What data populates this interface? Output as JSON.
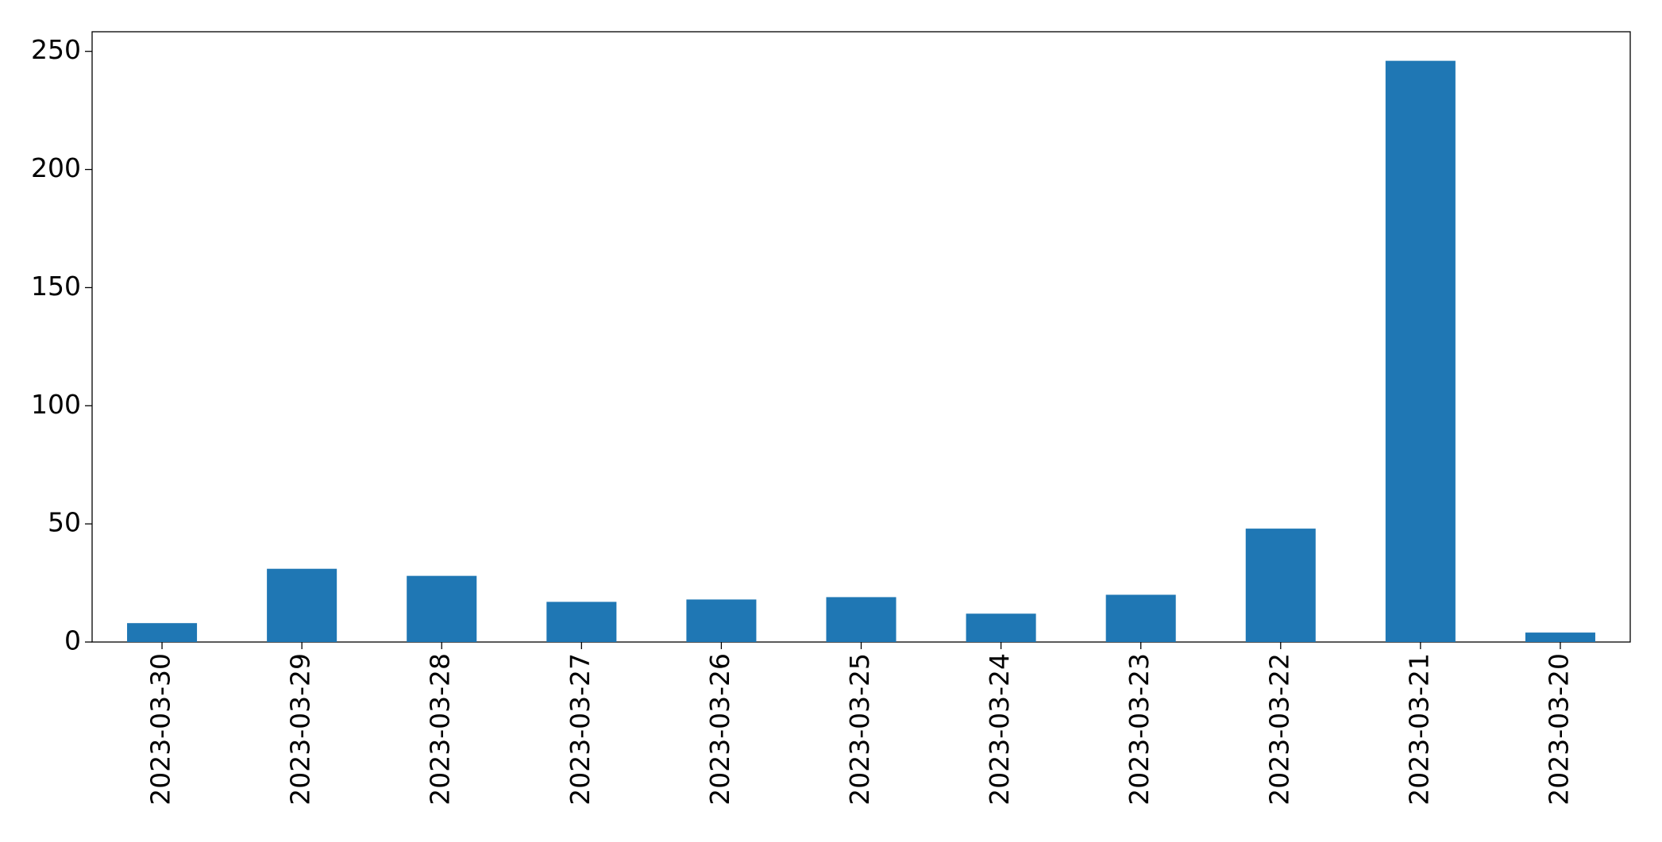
{
  "chart_data": {
    "type": "bar",
    "categories": [
      "2023-03-30",
      "2023-03-29",
      "2023-03-28",
      "2023-03-27",
      "2023-03-26",
      "2023-03-25",
      "2023-03-24",
      "2023-03-23",
      "2023-03-22",
      "2023-03-21",
      "2023-03-20"
    ],
    "values": [
      8,
      31,
      28,
      17,
      18,
      19,
      12,
      20,
      48,
      246,
      4
    ],
    "color": "#1f77b4",
    "ylim": [
      0,
      258.3
    ],
    "yticks": [
      0,
      50,
      100,
      150,
      200,
      250
    ],
    "grid": false
  }
}
